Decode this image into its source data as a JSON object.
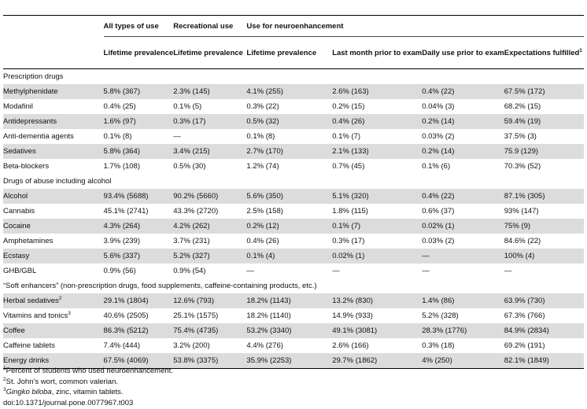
{
  "headers": {
    "group": [
      "",
      "All types of use",
      "Recreational use",
      "Use for neuroenhancement"
    ],
    "sub": [
      "",
      "Lifetime prevalence",
      "Lifetime prevalence",
      "Lifetime prevalence",
      "Last month prior to exam",
      "Daily use prior to exam",
      "Expectations fulfilled"
    ],
    "sub_marks": [
      "",
      "",
      "",
      "",
      "",
      "",
      "1"
    ]
  },
  "sections": [
    {
      "title": "Prescription drugs",
      "rows": [
        {
          "name": "Methylphenidate",
          "mark": "",
          "values": [
            "5.8% (367)",
            "2.3% (145)",
            "4.1% (255)",
            "2.6% (163)",
            "0.4% (22)",
            "67.5% (172)"
          ]
        },
        {
          "name": "Modafinil",
          "mark": "",
          "values": [
            "0.4% (25)",
            "0.1% (5)",
            "0.3% (22)",
            "0.2% (15)",
            "0.04% (3)",
            "68.2% (15)"
          ]
        },
        {
          "name": "Antidepressants",
          "mark": "",
          "values": [
            "1.6% (97)",
            "0.3% (17)",
            "0.5% (32)",
            "0.4% (26)",
            "0.2% (14)",
            "59.4% (19)"
          ]
        },
        {
          "name": "Anti-dementia agents",
          "mark": "",
          "values": [
            "0.1% (8)",
            "—",
            "0.1% (8)",
            "0.1% (7)",
            "0.03% (2)",
            "37.5% (3)"
          ]
        },
        {
          "name": "Sedatives",
          "mark": "",
          "values": [
            "5.8% (364)",
            "3.4% (215)",
            "2.7% (170)",
            "2.1% (133)",
            "0.2% (14)",
            "75.9 (129)"
          ]
        },
        {
          "name": "Beta-blockers",
          "mark": "",
          "values": [
            "1.7% (108)",
            "0.5% (30)",
            "1.2% (74)",
            "0.7% (45)",
            "0.1% (6)",
            "70.3% (52)"
          ]
        }
      ]
    },
    {
      "title": "Drugs of abuse including alcohol",
      "rows": [
        {
          "name": "Alcohol",
          "mark": "",
          "values": [
            "93.4% (5688)",
            "90.2% (5660)",
            "5.6% (350)",
            "5.1% (320)",
            "0.4% (22)",
            "87.1% (305)"
          ]
        },
        {
          "name": "Cannabis",
          "mark": "",
          "values": [
            "45.1% (2741)",
            "43.3% (2720)",
            "2.5% (158)",
            "1.8% (115)",
            "0.6% (37)",
            "93% (147)"
          ]
        },
        {
          "name": "Cocaine",
          "mark": "",
          "values": [
            "4.3% (264)",
            "4.2% (262)",
            "0.2% (12)",
            "0.1% (7)",
            "0.02% (1)",
            "75% (9)"
          ]
        },
        {
          "name": "Amphetamines",
          "mark": "",
          "values": [
            "3.9% (239)",
            "3.7% (231)",
            "0.4% (26)",
            "0.3% (17)",
            "0.03% (2)",
            "84.6% (22)"
          ]
        },
        {
          "name": "Ecstasy",
          "mark": "",
          "values": [
            "5.6% (337)",
            "5.2% (327)",
            "0.1% (4)",
            "0.02% (1)",
            "—",
            "100% (4)"
          ]
        },
        {
          "name": "GHB/GBL",
          "mark": "",
          "values": [
            "0.9% (56)",
            "0.9% (54)",
            "—",
            "—",
            "—",
            "—"
          ]
        }
      ]
    },
    {
      "title": "“Soft enhancers” (non-prescription drugs, food supplements, caffeine-containing products, etc.)",
      "rows": [
        {
          "name": "Herbal sedatives",
          "mark": "2",
          "values": [
            "29.1% (1804)",
            "12.6% (793)",
            "18.2% (1143)",
            "13.2% (830)",
            "1.4% (86)",
            "63.9% (730)"
          ]
        },
        {
          "name": "Vitamins and tonics",
          "mark": "3",
          "values": [
            "40.6% (2505)",
            "25.1% (1575)",
            "18.2% (1140)",
            "14.9% (933)",
            "5.2% (328)",
            "67.3% (766)"
          ]
        },
        {
          "name": "Coffee",
          "mark": "",
          "values": [
            "86.3% (5212)",
            "75.4% (4735)",
            "53.2% (3340)",
            "49.1% (3081)",
            "28.3% (1776)",
            "84.9% (2834)"
          ]
        },
        {
          "name": "Caffeine tablets",
          "mark": "",
          "values": [
            "7.4% (444)",
            "3.2% (200)",
            "4.4% (276)",
            "2.6% (166)",
            "0.3% (18)",
            "69.2% (191)"
          ]
        },
        {
          "name": "Energy drinks",
          "mark": "",
          "values": [
            "67.5% (4069)",
            "53.8% (3375)",
            "35.9% (2253)",
            "29.7% (1862)",
            "4% (250)",
            "82.1% (1849)"
          ]
        }
      ]
    }
  ],
  "footnotes": [
    {
      "mark": "1",
      "text": "Percent of students who used neuroenhancement.",
      "italic": ""
    },
    {
      "mark": "2",
      "text": "St. John’s wort, common valerian.",
      "italic": ""
    },
    {
      "mark": "3",
      "text": ", zinc, vitamin tablets.",
      "italic": "Gingko biloba"
    }
  ],
  "doi": "doi:10.1371/journal.pone.0077967.t003"
}
